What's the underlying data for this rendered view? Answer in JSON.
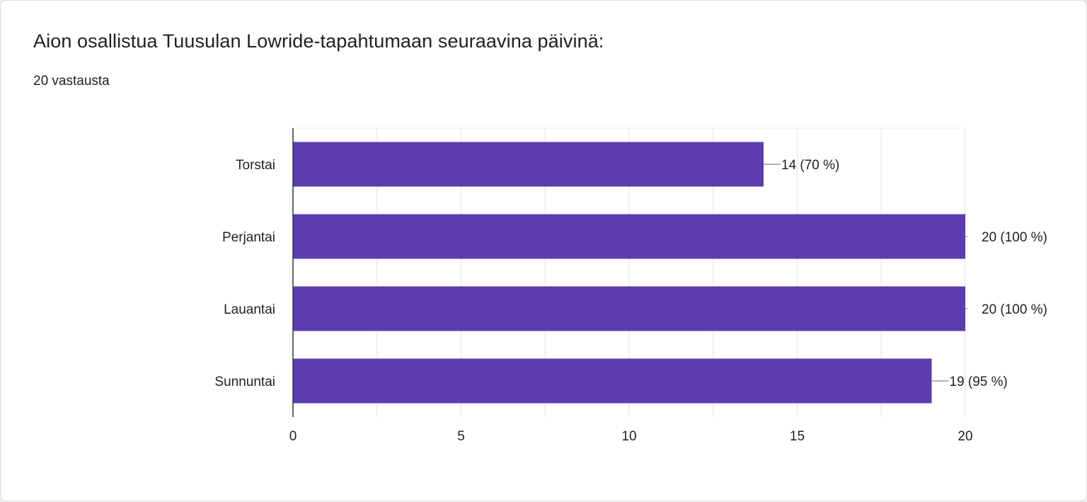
{
  "chart_data": {
    "type": "bar",
    "orientation": "horizontal",
    "title": "Aion osallistua Tuusulan Lowride-tapahtumaan seuraavina päivinä:",
    "subtitle": "20 vastausta",
    "categories": [
      "Torstai",
      "Perjantai",
      "Lauantai",
      "Sunnuntai"
    ],
    "values": [
      14,
      20,
      20,
      19
    ],
    "data_labels": [
      "14 (70 %)",
      "20 (100 %)",
      "20 (100 %)",
      "19 (95 %)"
    ],
    "xlim": [
      0,
      20
    ],
    "xticks": [
      0,
      5,
      10,
      15,
      20
    ],
    "xtick_labels": [
      "0",
      "5",
      "10",
      "15",
      "20"
    ],
    "grid": true,
    "bar_color": "#5e3bae"
  }
}
